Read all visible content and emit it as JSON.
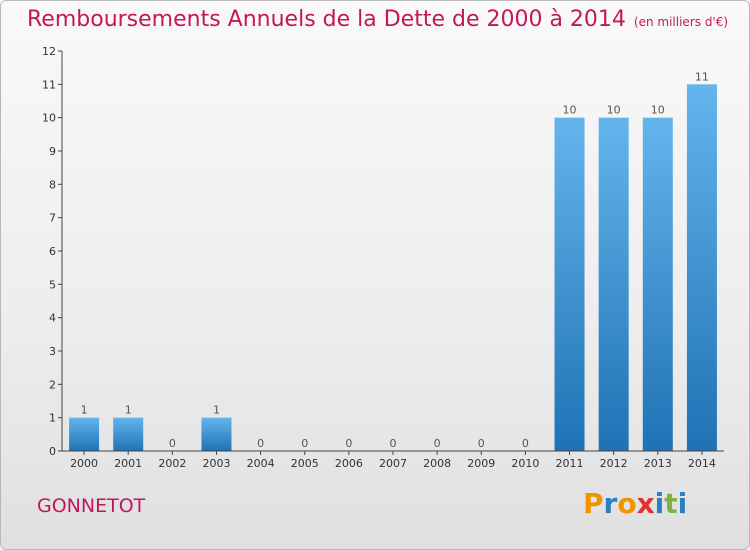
{
  "header": {
    "title": "Remboursements Annuels de la Dette de 2000 à 2014",
    "unit": "(en milliers d'€)"
  },
  "footer": {
    "commune": "GONNETOT",
    "logo": [
      "P",
      "r",
      "o",
      "x",
      "i",
      "t",
      "i"
    ]
  },
  "colors": {
    "title": "#c2185b",
    "bar_top": "#64b5ec",
    "bar_bottom": "#1f72b4",
    "axis": "#444444"
  },
  "chart_data": {
    "type": "bar",
    "title": "Remboursements Annuels de la Dette de 2000 à 2014",
    "xlabel": "",
    "ylabel": "",
    "categories": [
      "2000",
      "2001",
      "2002",
      "2003",
      "2004",
      "2005",
      "2006",
      "2007",
      "2008",
      "2009",
      "2010",
      "2011",
      "2012",
      "2013",
      "2014"
    ],
    "values": [
      1,
      1,
      0,
      1,
      0,
      0,
      0,
      0,
      0,
      0,
      0,
      10,
      10,
      10,
      11
    ],
    "ylim": [
      0,
      12
    ],
    "yticks": [
      0,
      1,
      2,
      3,
      4,
      5,
      6,
      7,
      8,
      9,
      10,
      11,
      12
    ],
    "grid": false,
    "legend": "none"
  }
}
